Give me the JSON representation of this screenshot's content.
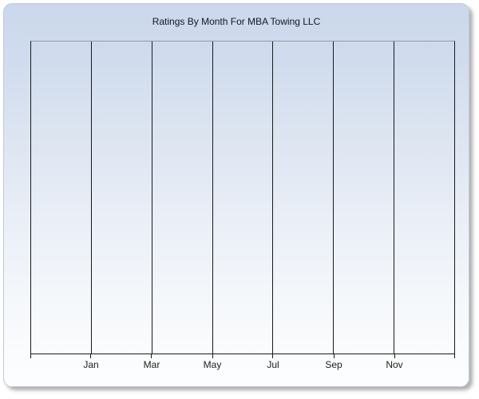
{
  "page": {
    "background": "#ffffff"
  },
  "card": {
    "background_top_color": "#cbd8eb",
    "background_bottom_color": "#fdfefe",
    "border_color": "#c0cbdb"
  },
  "chart": {
    "title": "Ratings By Month For MBA Towing LLC",
    "title_color": "#15151f",
    "gridline_color": "#1a1a1a",
    "plot_top_border_color": "#9a9a9a",
    "axis_color": "#1a1a1a",
    "tick_label_color": "#1c1c1c"
  },
  "chart_data": {
    "type": "line",
    "title": "Ratings By Month For MBA Towing LLC",
    "x_tick_labels": [
      "Jan",
      "Mar",
      "May",
      "Jul",
      "Sep",
      "Nov"
    ],
    "series": [],
    "xlabel": "",
    "ylabel": "",
    "x_gridline_count": 8,
    "grid": "vertical-only",
    "legend": "none"
  }
}
